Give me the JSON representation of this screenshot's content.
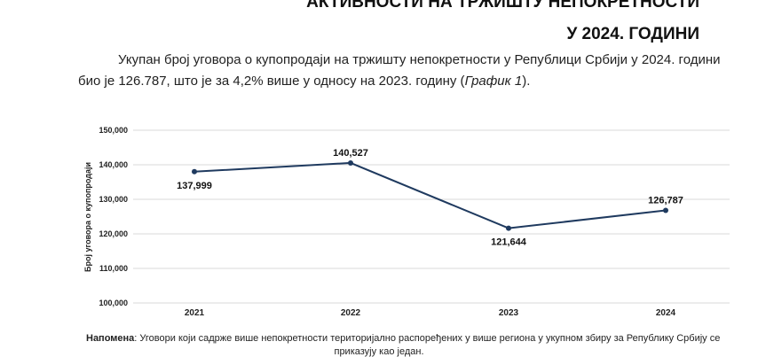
{
  "document": {
    "title_line1": "АКТИВНОСТИ НА ТРЖИШТУ НЕПОКРЕТНОСТИ",
    "title_line2": "У 2024. ГОДИНИ",
    "para_line1": "Укупан број уговора о купопродаји на тржишту непокретности у Републици Србији у 2024. години",
    "para_line2_prefix": "био је 126.787, што је за 4,2% више у односу на 2023. годину (",
    "para_line2_italic": "График 1",
    "para_line2_suffix": ").",
    "note_label": "Напомена",
    "note_text": ": Уговори који садрже више непокретности територијално распоређених у више региона у укупном збиру за Републику Србију се",
    "note_line2": "приказују као један."
  },
  "chart_data": {
    "type": "line",
    "categories": [
      "2021",
      "2022",
      "2023",
      "2024"
    ],
    "series": [
      {
        "values": [
          137999,
          140527,
          121644,
          126787
        ]
      }
    ],
    "data_labels": [
      "137,999",
      "140,527",
      "121,644",
      "126,787"
    ],
    "ylabel": "Број уговора о купопродаји",
    "ylim": [
      100000,
      150000
    ],
    "yticks": [
      100000,
      110000,
      120000,
      130000,
      140000,
      150000
    ],
    "ytick_labels": [
      "100,000",
      "110,000",
      "120,000",
      "130,000",
      "140,000",
      "150,000"
    ],
    "grid": true,
    "line_color": "#1f3a5f",
    "grid_color": "#d9d9d9"
  }
}
